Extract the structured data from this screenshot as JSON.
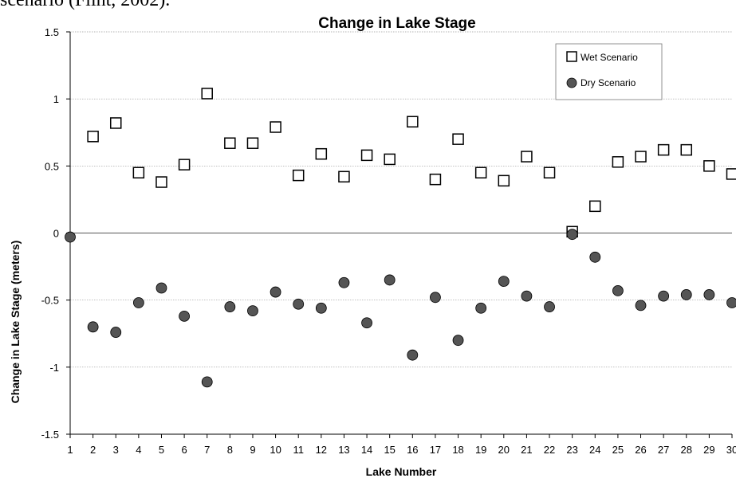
{
  "page": {
    "caption_fragment": "scenario (Flint, 2002)."
  },
  "chart_data": {
    "type": "scatter",
    "title": "Change in Lake Stage",
    "xlabel": "Lake Number",
    "ylabel": "Change in Lake Stage (meters)",
    "xlim": [
      1,
      30
    ],
    "ylim": [
      -1.5,
      1.5
    ],
    "x_ticks": [
      "1",
      "2",
      "3",
      "4",
      "5",
      "6",
      "7",
      "8",
      "9",
      "10",
      "11",
      "12",
      "13",
      "14",
      "15",
      "16",
      "17",
      "18",
      "19",
      "20",
      "21",
      "22",
      "23",
      "24",
      "25",
      "26",
      "27",
      "28",
      "29",
      "30"
    ],
    "y_ticks": [
      "1.5",
      "1",
      "0.5",
      "0",
      "-0.5",
      "-1",
      "-1.5"
    ],
    "grid": true,
    "legend_position": "top-right",
    "series": [
      {
        "name": "Wet Scenario",
        "marker": "square-open",
        "color": "#000000",
        "x": [
          2,
          3,
          4,
          5,
          6,
          7,
          8,
          9,
          10,
          11,
          12,
          13,
          14,
          15,
          16,
          17,
          18,
          19,
          20,
          21,
          22,
          23,
          24,
          25,
          26,
          27,
          28,
          29,
          30
        ],
        "y": [
          0.72,
          0.82,
          0.45,
          0.38,
          0.51,
          1.04,
          0.67,
          0.67,
          0.79,
          0.43,
          0.59,
          0.42,
          0.58,
          0.55,
          0.83,
          0.4,
          0.7,
          0.45,
          0.39,
          0.57,
          0.45,
          0.01,
          0.2,
          0.53,
          0.57,
          0.62,
          0.62,
          0.5,
          0.44
        ]
      },
      {
        "name": "Dry Scenario",
        "marker": "circle-filled",
        "color": "#555555",
        "x": [
          1,
          2,
          3,
          4,
          5,
          6,
          7,
          8,
          9,
          10,
          11,
          12,
          13,
          14,
          15,
          16,
          17,
          18,
          19,
          20,
          21,
          22,
          23,
          24,
          25,
          26,
          27,
          28,
          29,
          30
        ],
        "y": [
          -0.03,
          -0.7,
          -0.74,
          -0.52,
          -0.41,
          -0.62,
          -1.11,
          -0.55,
          -0.58,
          -0.44,
          -0.53,
          -0.56,
          -0.37,
          -0.67,
          -0.35,
          -0.91,
          -0.48,
          -0.8,
          -0.56,
          -0.36,
          -0.47,
          -0.55,
          -0.01,
          -0.18,
          -0.43,
          -0.54,
          -0.47,
          -0.46,
          -0.46,
          -0.52
        ]
      }
    ]
  }
}
